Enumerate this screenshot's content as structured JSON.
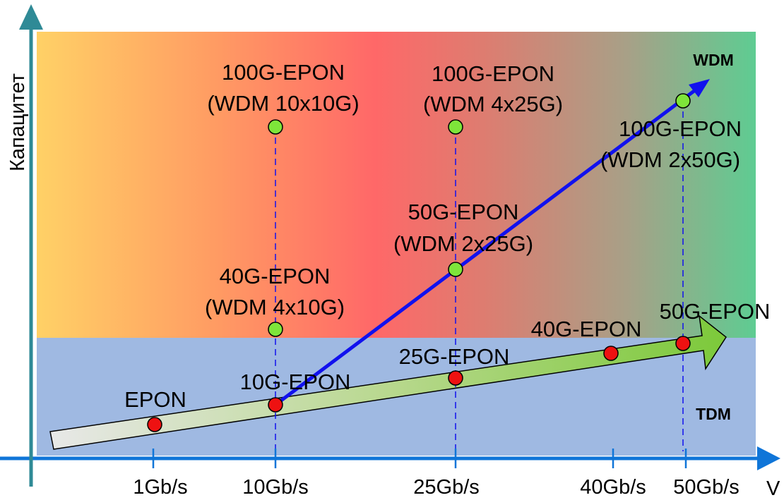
{
  "y_axis_label": "Капацитет",
  "x_axis_label": "V",
  "regions": {
    "upper": "WDM",
    "lower": "TDM"
  },
  "ticks": [
    "1Gb/s",
    "10Gb/s",
    "25Gb/s",
    "40Gb/s",
    "50Gb/s"
  ],
  "red_points": [
    {
      "name": "EPON"
    },
    {
      "name": "10G-EPON"
    },
    {
      "name": "25G-EPON"
    },
    {
      "name": "40G-EPON"
    },
    {
      "name": "50G-EPON"
    }
  ],
  "green_points": [
    {
      "line1": "40G-EPON",
      "line2": "(WDM 4x10G)"
    },
    {
      "line1": "100G-EPON",
      "line2": "(WDM 10x10G)"
    },
    {
      "line1": "50G-EPON",
      "line2": "(WDM 2x25G)"
    },
    {
      "line1": "100G-EPON",
      "line2": "(WDM 4x25G)"
    },
    {
      "line1": "100G-EPON",
      "line2": "(WDM 2x50G)"
    }
  ],
  "colors": {
    "tdm_band": "#9fb9e2",
    "red_point": "#ee1111",
    "green_point": "#7ee53a",
    "blue_arrow": "#1111ee",
    "axis": "#0f75d8",
    "y_axis": "#2f8a96"
  }
}
